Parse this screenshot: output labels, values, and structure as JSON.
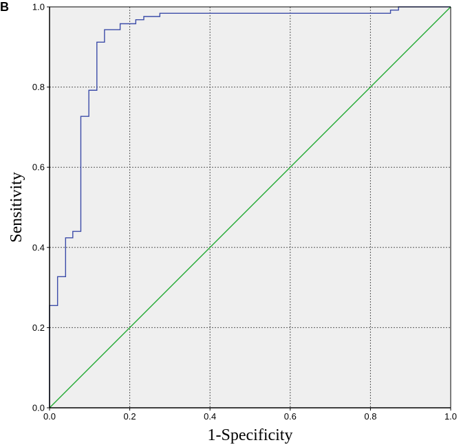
{
  "panel_label": "B",
  "chart_data": {
    "type": "line",
    "title": "",
    "xlabel": "1-Specificity",
    "ylabel": "Sensitivity",
    "xlim": [
      0,
      1
    ],
    "ylim": [
      0,
      1
    ],
    "x_ticks": [
      "0.0",
      "0.2",
      "0.4",
      "0.6",
      "0.8",
      "1.0"
    ],
    "y_ticks": [
      "0.0",
      "0.2",
      "0.4",
      "0.6",
      "0.8",
      "1.0"
    ],
    "grid": true,
    "plot_background": "#efefef",
    "series": [
      {
        "color": "#3b4ba8",
        "points": [
          [
            0.0,
            0.0
          ],
          [
            0.0,
            0.255
          ],
          [
            0.02,
            0.255
          ],
          [
            0.02,
            0.327
          ],
          [
            0.04,
            0.327
          ],
          [
            0.04,
            0.424
          ],
          [
            0.058,
            0.424
          ],
          [
            0.058,
            0.44
          ],
          [
            0.078,
            0.44
          ],
          [
            0.078,
            0.727
          ],
          [
            0.098,
            0.727
          ],
          [
            0.098,
            0.792
          ],
          [
            0.118,
            0.792
          ],
          [
            0.118,
            0.912
          ],
          [
            0.137,
            0.912
          ],
          [
            0.137,
            0.943
          ],
          [
            0.176,
            0.943
          ],
          [
            0.176,
            0.958
          ],
          [
            0.215,
            0.958
          ],
          [
            0.215,
            0.968
          ],
          [
            0.235,
            0.968
          ],
          [
            0.235,
            0.976
          ],
          [
            0.275,
            0.976
          ],
          [
            0.275,
            0.984
          ],
          [
            0.85,
            0.984
          ],
          [
            0.85,
            0.992
          ],
          [
            0.87,
            0.992
          ],
          [
            0.87,
            1.0
          ],
          [
            1.0,
            1.0
          ]
        ]
      },
      {
        "color": "#22aa33",
        "points": [
          [
            0.0,
            0.0
          ],
          [
            1.0,
            1.0
          ]
        ]
      }
    ]
  }
}
